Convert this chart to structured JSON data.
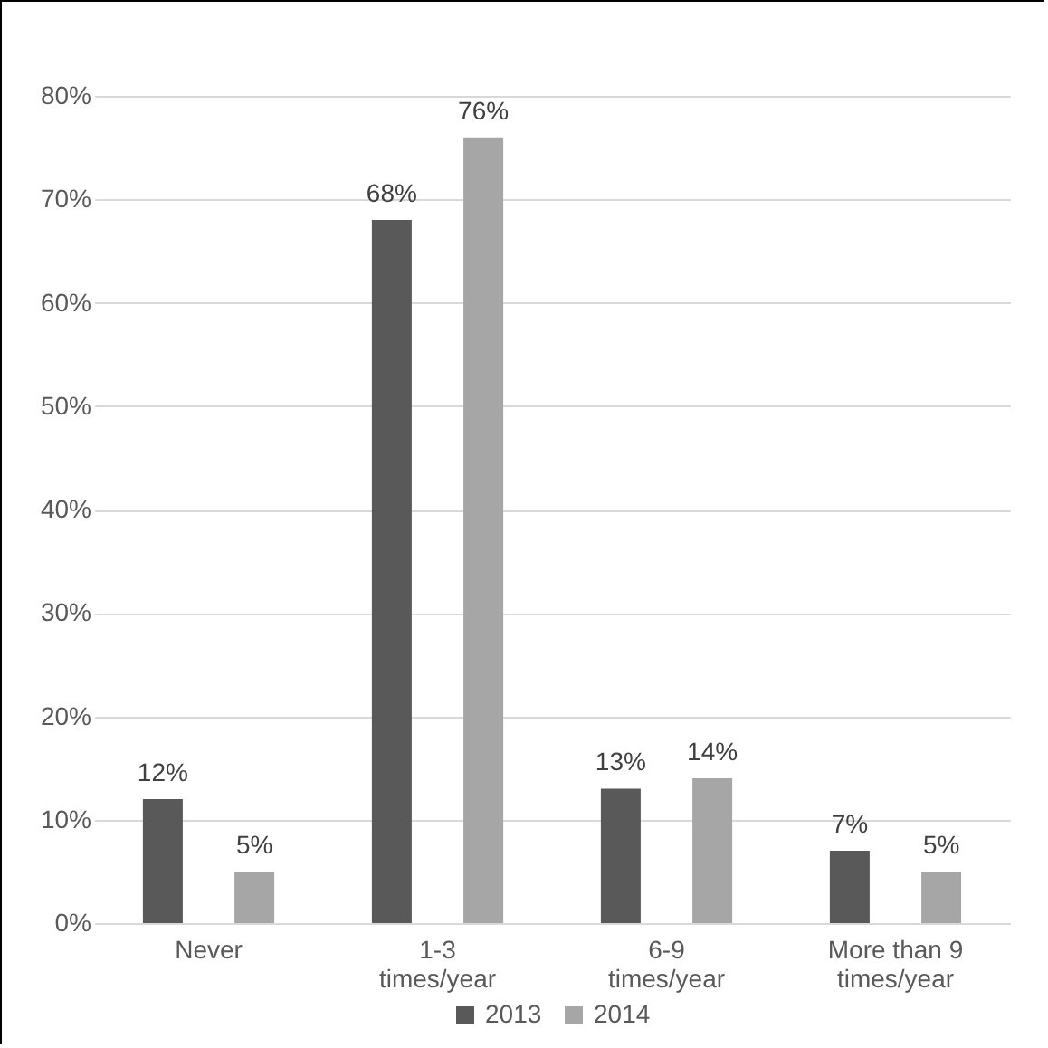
{
  "chart_data": {
    "type": "bar",
    "categories": [
      "Never",
      "1-3 times/year",
      "6-9 times/year",
      "More than 9 times/year"
    ],
    "series": [
      {
        "name": "2013",
        "color": "#595959",
        "values": [
          12,
          68,
          13,
          7
        ],
        "value_labels": [
          "12%",
          "68%",
          "13%",
          "7%"
        ]
      },
      {
        "name": "2014",
        "color": "#a6a6a6",
        "values": [
          5,
          76,
          14,
          5
        ],
        "value_labels": [
          "5%",
          "76%",
          "14%",
          "5%"
        ]
      }
    ],
    "ylim": [
      0,
      80
    ],
    "yticks": [
      {
        "value": 0,
        "label": "0%"
      },
      {
        "value": 10,
        "label": "10%"
      },
      {
        "value": 20,
        "label": "20%"
      },
      {
        "value": 30,
        "label": "30%"
      },
      {
        "value": 40,
        "label": "40%"
      },
      {
        "value": 50,
        "label": "50%"
      },
      {
        "value": 60,
        "label": "60%"
      },
      {
        "value": 70,
        "label": "70%"
      },
      {
        "value": 80,
        "label": "80%"
      }
    ],
    "grid": "y",
    "legend": "bottom"
  }
}
